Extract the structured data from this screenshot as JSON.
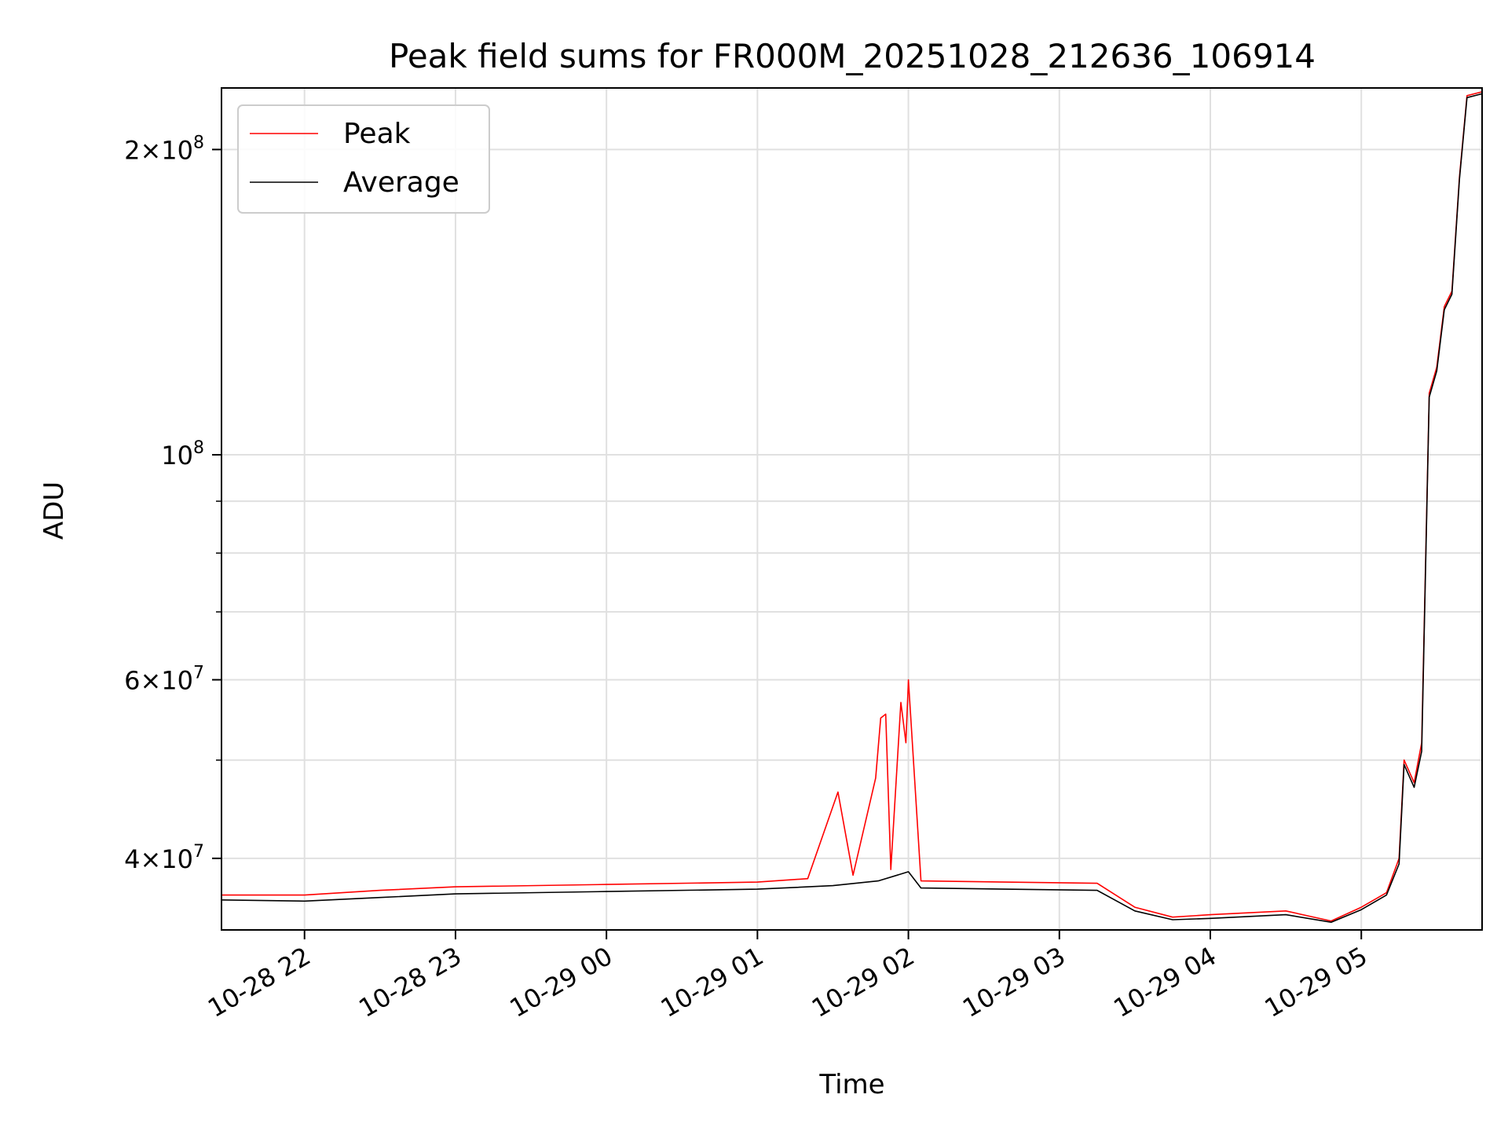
{
  "chart_data": {
    "type": "line",
    "title": "Peak field sums for FR000M_20251028_212636_106914",
    "xlabel": "Time",
    "ylabel": "ADU",
    "yscale": "log",
    "xlim": [
      "2025-10-28 21:27",
      "2025-10-29 05:48"
    ],
    "ylim": [
      34000000,
      230000000
    ],
    "grid": true,
    "legend_position": "top-left",
    "x_ticks": [
      {
        "value": "2025-10-28 22:00",
        "label": "10-28 22"
      },
      {
        "value": "2025-10-28 23:00",
        "label": "10-28 23"
      },
      {
        "value": "2025-10-29 00:00",
        "label": "10-29 00"
      },
      {
        "value": "2025-10-29 01:00",
        "label": "10-29 01"
      },
      {
        "value": "2025-10-29 02:00",
        "label": "10-29 02"
      },
      {
        "value": "2025-10-29 03:00",
        "label": "10-29 03"
      },
      {
        "value": "2025-10-29 04:00",
        "label": "10-29 04"
      },
      {
        "value": "2025-10-29 05:00",
        "label": "10-29 05"
      }
    ],
    "y_ticks": [
      {
        "value": 40000000,
        "mantissa": "4",
        "exponent": "7"
      },
      {
        "value": 60000000,
        "mantissa": "6",
        "exponent": "7"
      },
      {
        "value": 100000000,
        "mantissa": "",
        "exponent": "8"
      },
      {
        "value": 200000000,
        "mantissa": "2",
        "exponent": "8"
      }
    ],
    "y_minor_ticks": [
      50000000,
      70000000,
      80000000,
      90000000
    ],
    "series": [
      {
        "name": "Peak",
        "color": "#ff0000",
        "points": [
          [
            "2025-10-28 21:27",
            36800000
          ],
          [
            "2025-10-28 22:00",
            36800000
          ],
          [
            "2025-10-28 22:30",
            37200000
          ],
          [
            "2025-10-28 23:00",
            37500000
          ],
          [
            "2025-10-29 00:00",
            37700000
          ],
          [
            "2025-10-29 01:00",
            37900000
          ],
          [
            "2025-10-29 01:20",
            38200000
          ],
          [
            "2025-10-29 01:32",
            46500000
          ],
          [
            "2025-10-29 01:38",
            38500000
          ],
          [
            "2025-10-29 01:47",
            48000000
          ],
          [
            "2025-10-29 01:49",
            55000000
          ],
          [
            "2025-10-29 01:51",
            55500000
          ],
          [
            "2025-10-29 01:53",
            39000000
          ],
          [
            "2025-10-29 01:57",
            57000000
          ],
          [
            "2025-10-29 01:59",
            52000000
          ],
          [
            "2025-10-29 02:00",
            60000000
          ],
          [
            "2025-10-29 02:05",
            38000000
          ],
          [
            "2025-10-29 03:15",
            37800000
          ],
          [
            "2025-10-29 03:30",
            35800000
          ],
          [
            "2025-10-29 03:45",
            35000000
          ],
          [
            "2025-10-29 04:00",
            35200000
          ],
          [
            "2025-10-29 04:30",
            35500000
          ],
          [
            "2025-10-29 04:48",
            34700000
          ],
          [
            "2025-10-29 05:00",
            35800000
          ],
          [
            "2025-10-29 05:10",
            37000000
          ],
          [
            "2025-10-29 05:15",
            40000000
          ],
          [
            "2025-10-29 05:17",
            50000000
          ],
          [
            "2025-10-29 05:21",
            47500000
          ],
          [
            "2025-10-29 05:24",
            52000000
          ],
          [
            "2025-10-29 05:27",
            115000000
          ],
          [
            "2025-10-29 05:30",
            122000000
          ],
          [
            "2025-10-29 05:33",
            140000000
          ],
          [
            "2025-10-29 05:36",
            145000000
          ],
          [
            "2025-10-29 05:39",
            188000000
          ],
          [
            "2025-10-29 05:42",
            226000000
          ],
          [
            "2025-10-29 05:48",
            228000000
          ]
        ]
      },
      {
        "name": "Average",
        "color": "#000000",
        "points": [
          [
            "2025-10-28 21:27",
            36400000
          ],
          [
            "2025-10-28 22:00",
            36300000
          ],
          [
            "2025-10-28 22:30",
            36600000
          ],
          [
            "2025-10-28 23:00",
            36900000
          ],
          [
            "2025-10-29 00:00",
            37100000
          ],
          [
            "2025-10-29 01:00",
            37300000
          ],
          [
            "2025-10-29 01:30",
            37600000
          ],
          [
            "2025-10-29 01:48",
            38000000
          ],
          [
            "2025-10-29 02:00",
            38800000
          ],
          [
            "2025-10-29 02:05",
            37400000
          ],
          [
            "2025-10-29 03:15",
            37200000
          ],
          [
            "2025-10-29 03:30",
            35500000
          ],
          [
            "2025-10-29 03:45",
            34800000
          ],
          [
            "2025-10-29 04:00",
            34900000
          ],
          [
            "2025-10-29 04:30",
            35200000
          ],
          [
            "2025-10-29 04:48",
            34600000
          ],
          [
            "2025-10-29 05:00",
            35600000
          ],
          [
            "2025-10-29 05:10",
            36800000
          ],
          [
            "2025-10-29 05:15",
            39500000
          ],
          [
            "2025-10-29 05:17",
            49500000
          ],
          [
            "2025-10-29 05:21",
            47000000
          ],
          [
            "2025-10-29 05:24",
            51000000
          ],
          [
            "2025-10-29 05:27",
            114000000
          ],
          [
            "2025-10-29 05:30",
            121000000
          ],
          [
            "2025-10-29 05:33",
            139000000
          ],
          [
            "2025-10-29 05:36",
            144000000
          ],
          [
            "2025-10-29 05:39",
            187000000
          ],
          [
            "2025-10-29 05:42",
            225000000
          ],
          [
            "2025-10-29 05:48",
            227000000
          ]
        ]
      }
    ]
  }
}
